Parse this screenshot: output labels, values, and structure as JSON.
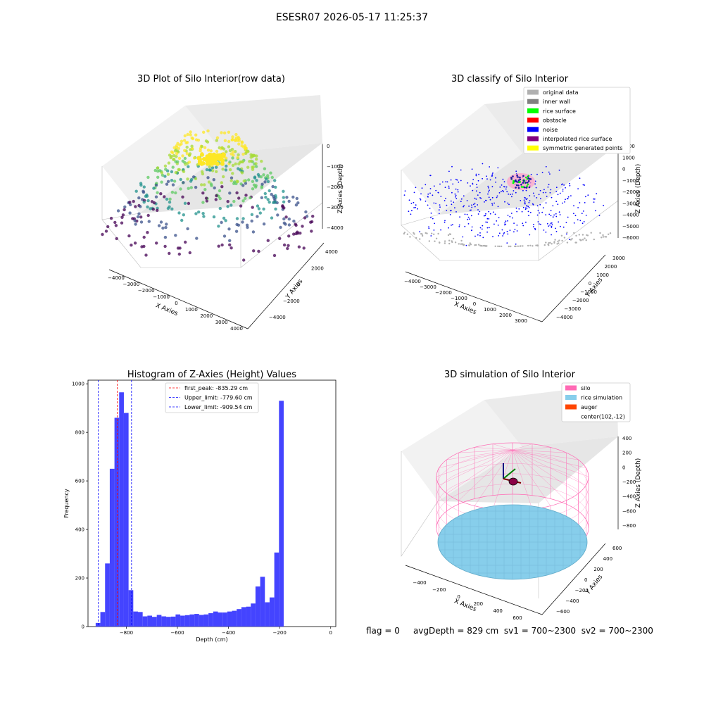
{
  "suptitle": "ESESR07 2026-05-17 11:25:37",
  "status": {
    "flag": "flag = 0",
    "avg_depth": "avgDepth = 829 cm",
    "sv1": "sv1 = 700~2300",
    "sv2": "sv2 = 700~2300"
  },
  "chart_data": [
    {
      "id": "raw",
      "type": "scatter",
      "projection": "3d",
      "title": "3D Plot of Silo Interior(row data)",
      "xlabel": "X Axies",
      "ylabel": "Y Axies",
      "zlabel": "Z Axies (Depth)",
      "x_ticks": [
        "−4000",
        "−3000",
        "−2000",
        "−1000",
        "0",
        "1000",
        "2000",
        "3000",
        "4000"
      ],
      "y_ticks": [
        "−4000",
        "−2000",
        "0",
        "2000",
        "4000"
      ],
      "z_ticks": [
        "−4000",
        "−3000",
        "−2000",
        "−1000",
        "0"
      ],
      "colormap": "viridis"
    },
    {
      "id": "classify",
      "type": "scatter",
      "projection": "3d",
      "title": "3D classify of Silo Interior",
      "xlabel": "X Axies",
      "ylabel": "Y Axies",
      "zlabel": "Z Axies (Depth)",
      "x_ticks": [
        "−4000",
        "−3000",
        "−2000",
        "−1000",
        "0",
        "1000",
        "2000",
        "3000"
      ],
      "y_ticks": [
        "−4000",
        "−3000",
        "−2000",
        "−1000",
        "0",
        "1000",
        "2000",
        "3000"
      ],
      "z_ticks": [
        "−6000",
        "−5000",
        "−4000",
        "−3000",
        "−2000",
        "−1000",
        "0",
        "1000",
        "2000"
      ],
      "legend_position": "top-right",
      "legend": [
        {
          "label": "original data",
          "color": "#b0b0b0"
        },
        {
          "label": "inner wall",
          "color": "#808080"
        },
        {
          "label": "rice surface",
          "color": "#00ff00"
        },
        {
          "label": "obstacle",
          "color": "#ff0000"
        },
        {
          "label": "noise",
          "color": "#0000ff"
        },
        {
          "label": "interpolated rice surface",
          "color": "#800080"
        },
        {
          "label": "symmetric generated points",
          "color": "#ffff00"
        }
      ]
    },
    {
      "id": "histogram",
      "type": "bar",
      "title": "Histogram of Z-Axies (Height) Values",
      "xlabel": "Depth (cm)",
      "ylabel": "Frequency",
      "xlim": [
        -950,
        20
      ],
      "ylim": [
        0,
        1015
      ],
      "x_ticks": [
        -800,
        -600,
        -400,
        -200,
        0
      ],
      "y_ticks": [
        0,
        200,
        400,
        600,
        800,
        1000
      ],
      "bar_color": "#4444ff",
      "bin_start": -920,
      "bin_width": 18.4,
      "values": [
        15,
        60,
        260,
        650,
        860,
        965,
        880,
        150,
        62,
        60,
        42,
        45,
        40,
        48,
        42,
        40,
        41,
        50,
        45,
        47,
        50,
        52,
        48,
        50,
        55,
        62,
        58,
        58,
        62,
        65,
        72,
        80,
        82,
        95,
        165,
        205,
        100,
        120,
        305,
        930
      ],
      "vlines": [
        {
          "label": "first_peak: -835.29 cm",
          "x": -835.29,
          "color": "#ff0000"
        },
        {
          "label": "Upper_limit: -779.60 cm",
          "x": -779.6,
          "color": "#0000ff"
        },
        {
          "label": "Lower_limit: -909.54 cm",
          "x": -909.54,
          "color": "#0000ff"
        }
      ],
      "legend_position": "top-center"
    },
    {
      "id": "simulation",
      "type": "scatter",
      "projection": "3d",
      "title": "3D simulation of Silo Interior",
      "xlabel": "X Axies",
      "ylabel": "Y Axies",
      "zlabel": "Z Axies (Depth)",
      "x_ticks": [
        "−400",
        "−200",
        "0",
        "200",
        "400",
        "600"
      ],
      "y_ticks": [
        "−600",
        "−400",
        "−200",
        "0",
        "200",
        "400",
        "600"
      ],
      "z_ticks": [
        "−800",
        "−600",
        "−400",
        "−200",
        "0",
        "200",
        "400"
      ],
      "legend_position": "top-right",
      "legend": [
        {
          "label": "silo",
          "color": "#ff69b4"
        },
        {
          "label": "rice simulation",
          "color": "#87ceeb"
        },
        {
          "label": "auger",
          "color": "#ff4500"
        },
        {
          "label": "center(102,-12)",
          "color": ""
        }
      ]
    }
  ]
}
